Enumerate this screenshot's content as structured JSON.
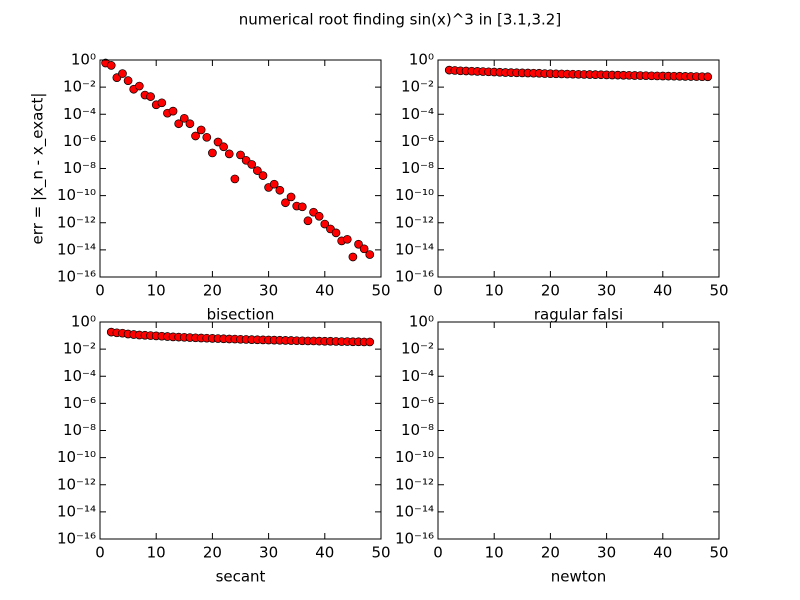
{
  "title": "numerical root finding sin(x)^3 in [3.1,3.2]",
  "chart_data": [
    {
      "type": "scatter",
      "xlabel": "bisection",
      "ylabel": "err = |x_n - x_exact|",
      "color": "#ff0000",
      "yscale": "log",
      "xlim": [
        0,
        50
      ],
      "xticks": [
        0,
        10,
        20,
        30,
        40,
        50
      ],
      "ylim": [
        1e-16,
        1
      ],
      "yticks": [
        {
          "value": 1,
          "label": "10⁰"
        },
        {
          "value": 0.01,
          "label": "10⁻²"
        },
        {
          "value": 0.0001,
          "label": "10⁻⁴"
        },
        {
          "value": 1e-06,
          "label": "10⁻⁶"
        },
        {
          "value": 1e-08,
          "label": "10⁻⁸"
        },
        {
          "value": 1e-10,
          "label": "10⁻¹⁰"
        },
        {
          "value": 1e-12,
          "label": "10⁻¹²"
        },
        {
          "value": 1e-14,
          "label": "10⁻¹⁴"
        },
        {
          "value": 1e-16,
          "label": "10⁻¹⁶"
        }
      ],
      "x": [
        1,
        2,
        3,
        4,
        5,
        6,
        7,
        8,
        9,
        10,
        11,
        12,
        13,
        14,
        15,
        16,
        17,
        18,
        19,
        20,
        21,
        22,
        23,
        24,
        25,
        26,
        27,
        28,
        29,
        30,
        31,
        32,
        33,
        34,
        35,
        36,
        37,
        38,
        39,
        40,
        41,
        42,
        43,
        44,
        45,
        46,
        47,
        48
      ],
      "values": [
        0.6,
        0.4,
        0.05,
        0.1,
        0.03,
        0.007,
        0.012,
        0.0026,
        0.002,
        0.0005,
        0.0007,
        0.00012,
        0.00017,
        2e-05,
        5e-05,
        2e-05,
        2.5e-06,
        7e-06,
        2e-06,
        1.4e-07,
        9e-07,
        4e-07,
        1.2e-07,
        1.7e-09,
        1e-07,
        4e-08,
        2e-08,
        7e-09,
        3e-09,
        4e-10,
        7e-10,
        2.5e-10,
        3e-11,
        8e-11,
        1.7e-11,
        1.5e-11,
        1.4e-12,
        6e-12,
        3e-12,
        8e-13,
        3.5e-13,
        1.8e-13,
        4.6e-14,
        6e-14,
        3e-15,
        2.6e-14,
        1.2e-14,
        4.5e-15
      ]
    },
    {
      "type": "scatter",
      "xlabel": "ragular falsi",
      "color": "#ff0000",
      "yscale": "log",
      "xlim": [
        0,
        50
      ],
      "xticks": [
        0,
        10,
        20,
        30,
        40,
        50
      ],
      "ylim": [
        1e-16,
        1
      ],
      "yticks": [
        {
          "value": 1,
          "label": "10⁰"
        },
        {
          "value": 0.01,
          "label": "10⁻²"
        },
        {
          "value": 0.0001,
          "label": "10⁻⁴"
        },
        {
          "value": 1e-06,
          "label": "10⁻⁶"
        },
        {
          "value": 1e-08,
          "label": "10⁻⁸"
        },
        {
          "value": 1e-10,
          "label": "10⁻¹⁰"
        },
        {
          "value": 1e-12,
          "label": "10⁻¹²"
        },
        {
          "value": 1e-14,
          "label": "10⁻¹⁴"
        },
        {
          "value": 1e-16,
          "label": "10⁻¹⁶"
        }
      ],
      "x": [
        2,
        3,
        4,
        5,
        6,
        7,
        8,
        9,
        10,
        11,
        12,
        13,
        14,
        15,
        16,
        17,
        18,
        19,
        20,
        21,
        22,
        23,
        24,
        25,
        26,
        27,
        28,
        29,
        30,
        31,
        32,
        33,
        34,
        35,
        36,
        37,
        38,
        39,
        40,
        41,
        42,
        43,
        44,
        45,
        46,
        47,
        48
      ],
      "values": [
        0.18,
        0.17,
        0.16,
        0.155,
        0.15,
        0.145,
        0.14,
        0.135,
        0.13,
        0.125,
        0.12,
        0.118,
        0.115,
        0.112,
        0.11,
        0.107,
        0.105,
        0.1,
        0.098,
        0.096,
        0.094,
        0.092,
        0.09,
        0.088,
        0.086,
        0.085,
        0.083,
        0.082,
        0.08,
        0.078,
        0.077,
        0.075,
        0.074,
        0.072,
        0.071,
        0.07,
        0.068,
        0.067,
        0.066,
        0.065,
        0.064,
        0.063,
        0.062,
        0.061,
        0.06,
        0.059,
        0.058
      ]
    },
    {
      "type": "scatter",
      "xlabel": "secant",
      "color": "#ff0000",
      "yscale": "log",
      "xlim": [
        0,
        50
      ],
      "xticks": [
        0,
        10,
        20,
        30,
        40,
        50
      ],
      "ylim": [
        1e-16,
        1
      ],
      "yticks": [
        {
          "value": 1,
          "label": "10⁰"
        },
        {
          "value": 0.01,
          "label": "10⁻²"
        },
        {
          "value": 0.0001,
          "label": "10⁻⁴"
        },
        {
          "value": 1e-06,
          "label": "10⁻⁶"
        },
        {
          "value": 1e-08,
          "label": "10⁻⁸"
        },
        {
          "value": 1e-10,
          "label": "10⁻¹⁰"
        },
        {
          "value": 1e-12,
          "label": "10⁻¹²"
        },
        {
          "value": 1e-14,
          "label": "10⁻¹⁴"
        },
        {
          "value": 1e-16,
          "label": "10⁻¹⁶"
        }
      ],
      "x": [
        2,
        3,
        4,
        5,
        6,
        7,
        8,
        9,
        10,
        11,
        12,
        13,
        14,
        15,
        16,
        17,
        18,
        19,
        20,
        21,
        22,
        23,
        24,
        25,
        26,
        27,
        28,
        29,
        30,
        31,
        32,
        33,
        34,
        35,
        36,
        37,
        38,
        39,
        40,
        41,
        42,
        43,
        44,
        45,
        46,
        47,
        48
      ],
      "values": [
        0.18,
        0.16,
        0.15,
        0.13,
        0.12,
        0.11,
        0.105,
        0.1,
        0.095,
        0.09,
        0.085,
        0.08,
        0.077,
        0.074,
        0.071,
        0.068,
        0.066,
        0.064,
        0.062,
        0.06,
        0.058,
        0.056,
        0.055,
        0.053,
        0.052,
        0.05,
        0.049,
        0.048,
        0.047,
        0.046,
        0.045,
        0.044,
        0.043,
        0.042,
        0.041,
        0.04,
        0.04,
        0.039,
        0.038,
        0.038,
        0.037,
        0.036,
        0.036,
        0.035,
        0.035,
        0.034,
        0.034
      ]
    },
    {
      "type": "scatter",
      "xlabel": "newton",
      "color": "#ff0000",
      "yscale": "log",
      "xlim": [
        0,
        50
      ],
      "xticks": [
        0,
        10,
        20,
        30,
        40,
        50
      ],
      "ylim": [
        1e-16,
        1
      ],
      "yticks": [
        {
          "value": 1,
          "label": "10⁰"
        },
        {
          "value": 0.01,
          "label": "10⁻²"
        },
        {
          "value": 0.0001,
          "label": "10⁻⁴"
        },
        {
          "value": 1e-06,
          "label": "10⁻⁶"
        },
        {
          "value": 1e-08,
          "label": "10⁻⁸"
        },
        {
          "value": 1e-10,
          "label": "10⁻¹⁰"
        },
        {
          "value": 1e-12,
          "label": "10⁻¹²"
        },
        {
          "value": 1e-14,
          "label": "10⁻¹⁴"
        },
        {
          "value": 1e-16,
          "label": "10⁻¹⁶"
        }
      ],
      "x": [],
      "values": []
    }
  ]
}
